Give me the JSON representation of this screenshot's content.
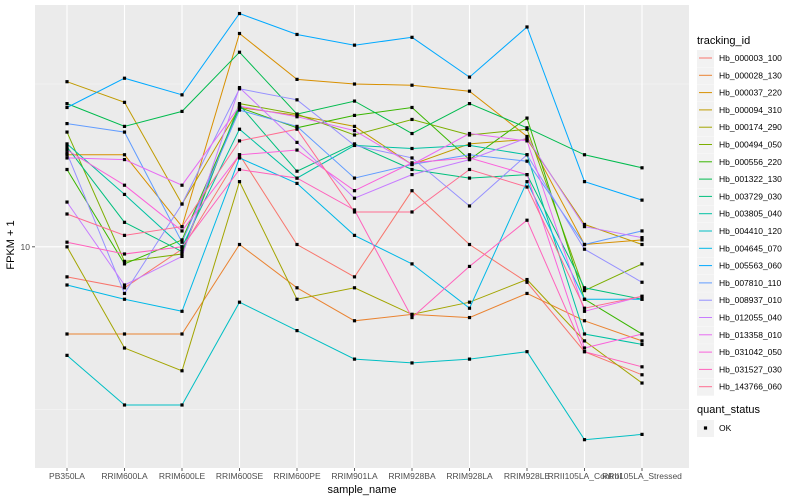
{
  "chart_data": {
    "type": "line",
    "xlabel": "sample_name",
    "ylabel": "FPKM + 1",
    "y_scale": "log10",
    "ylim": [
      3.9,
      28
    ],
    "y_ticks": [
      {
        "value": 10,
        "label": "10"
      }
    ],
    "grid": true,
    "legend_position": "right",
    "categories": [
      "PB350LA",
      "RRIM600LA",
      "RRIM600LE",
      "RRIM600SE",
      "RRIM600PE",
      "RRIM901LA",
      "RRIM928BA",
      "RRIM928LA",
      "RRIM928LE",
      "RRII105LA_Control",
      "RRII105LA_Stressed"
    ],
    "color_legend": {
      "title": "tracking_id",
      "entries": [
        "Hb_000003_100",
        "Hb_000028_130",
        "Hb_000037_220",
        "Hb_000094_310",
        "Hb_000174_290",
        "Hb_000494_050",
        "Hb_000556_220",
        "Hb_001322_130",
        "Hb_003729_030",
        "Hb_003805_040",
        "Hb_004410_120",
        "Hb_004645_070",
        "Hb_005563_060",
        "Hb_007810_110",
        "Hb_008937_010",
        "Hb_012055_040",
        "Hb_013358_010",
        "Hb_031042_050",
        "Hb_031527_030",
        "Hb_143766_060"
      ]
    },
    "shape_legend": {
      "title": "quant_status",
      "entries": [
        "OK"
      ]
    },
    "series": [
      {
        "name": "Hb_000003_100",
        "color": "#F8766D",
        "values": [
          8.8,
          8.4,
          9.9,
          14.8,
          10.1,
          8.8,
          12.7,
          10.1,
          8.6,
          6.4,
          5.8
        ]
      },
      {
        "name": "Hb_000028_130",
        "color": "#EA8331",
        "values": [
          6.9,
          6.9,
          6.9,
          10.1,
          8.4,
          7.3,
          7.5,
          7.4,
          8.2,
          7.3,
          6.7
        ]
      },
      {
        "name": "Hb_000037_220",
        "color": "#D89000",
        "values": [
          14.8,
          14.8,
          10.9,
          24.8,
          20.4,
          20.0,
          19.9,
          19.4,
          16.0,
          10.1,
          10.3
        ]
      },
      {
        "name": "Hb_000094_310",
        "color": "#C09B00",
        "values": [
          20.2,
          18.5,
          12.0,
          18.1,
          17.5,
          16.7,
          14.2,
          15.5,
          15.8,
          11.0,
          10.1
        ]
      },
      {
        "name": "Hb_000174_290",
        "color": "#A3A500",
        "values": [
          10.0,
          6.5,
          5.9,
          13.2,
          8.0,
          8.4,
          7.5,
          7.9,
          8.7,
          6.7,
          5.6
        ]
      },
      {
        "name": "Hb_000494_050",
        "color": "#7CAE00",
        "values": [
          16.3,
          9.4,
          9.7,
          18.4,
          17.6,
          16.1,
          17.2,
          16.1,
          16.5,
          8.3,
          9.3
        ]
      },
      {
        "name": "Hb_000556_220",
        "color": "#39B600",
        "values": [
          13.9,
          9.3,
          10.3,
          18.1,
          16.6,
          17.5,
          18.1,
          14.5,
          17.3,
          8.0,
          6.9
        ]
      },
      {
        "name": "Hb_001322_130",
        "color": "#00BB4E",
        "values": [
          18.4,
          16.7,
          17.8,
          22.9,
          17.6,
          18.6,
          16.2,
          18.4,
          16.6,
          14.8,
          14.0
        ]
      },
      {
        "name": "Hb_003729_030",
        "color": "#00BF7D",
        "values": [
          15.3,
          11.1,
          9.8,
          18.3,
          13.8,
          15.5,
          13.9,
          13.4,
          13.6,
          8.4,
          8.0
        ]
      },
      {
        "name": "Hb_003805_040",
        "color": "#00C1A3",
        "values": [
          15.5,
          12.5,
          10.0,
          16.5,
          13.4,
          15.4,
          15.2,
          15.4,
          14.8,
          6.9,
          6.6
        ]
      },
      {
        "name": "Hb_004410_120",
        "color": "#00BFC4",
        "values": [
          6.3,
          5.1,
          5.1,
          7.9,
          7.0,
          6.2,
          6.1,
          6.2,
          6.4,
          4.4,
          4.5
        ]
      },
      {
        "name": "Hb_004645_070",
        "color": "#00B8E7",
        "values": [
          8.5,
          8.0,
          7.6,
          14.6,
          13.1,
          10.5,
          9.3,
          7.7,
          13.2,
          8.0,
          8.0
        ]
      },
      {
        "name": "Hb_005563_060",
        "color": "#00A9FF",
        "values": [
          18.1,
          20.5,
          19.1,
          27.0,
          24.7,
          23.6,
          24.4,
          20.6,
          25.5,
          13.2,
          12.2
        ]
      },
      {
        "name": "Hb_007810_110",
        "color": "#619CFF",
        "values": [
          16.9,
          16.3,
          10.2,
          17.9,
          16.7,
          13.4,
          14.2,
          14.8,
          14.4,
          10.1,
          10.7
        ]
      },
      {
        "name": "Hb_008937_010",
        "color": "#9590FF",
        "values": [
          14.9,
          8.2,
          12.0,
          19.6,
          18.7,
          15.4,
          14.6,
          11.9,
          14.8,
          9.9,
          8.6
        ]
      },
      {
        "name": "Hb_012055_040",
        "color": "#C77CFF",
        "values": [
          12.1,
          8.5,
          9.6,
          19.7,
          15.6,
          12.3,
          13.6,
          14.5,
          15.9,
          10.9,
          10.4
        ]
      },
      {
        "name": "Hb_013358_010",
        "color": "#E76BF3",
        "values": [
          14.6,
          14.5,
          13.0,
          18.2,
          17.4,
          16.4,
          14.2,
          16.2,
          15.7,
          7.6,
          8.1
        ]
      },
      {
        "name": "Hb_031042_050",
        "color": "#FA62DB",
        "values": [
          15.1,
          13.0,
          10.7,
          14.8,
          15.1,
          12.7,
          14.3,
          14.6,
          13.6,
          6.5,
          6.9
        ]
      },
      {
        "name": "Hb_031527_030",
        "color": "#FF62BC",
        "values": [
          10.2,
          9.7,
          10.0,
          13.9,
          13.4,
          11.7,
          7.4,
          9.2,
          11.2,
          6.4,
          6.0
        ]
      },
      {
        "name": "Hb_143766_060",
        "color": "#FF6C91",
        "values": [
          11.5,
          10.5,
          10.9,
          15.7,
          16.5,
          11.6,
          11.6,
          13.9,
          12.9,
          7.7,
          8.1
        ]
      }
    ]
  }
}
